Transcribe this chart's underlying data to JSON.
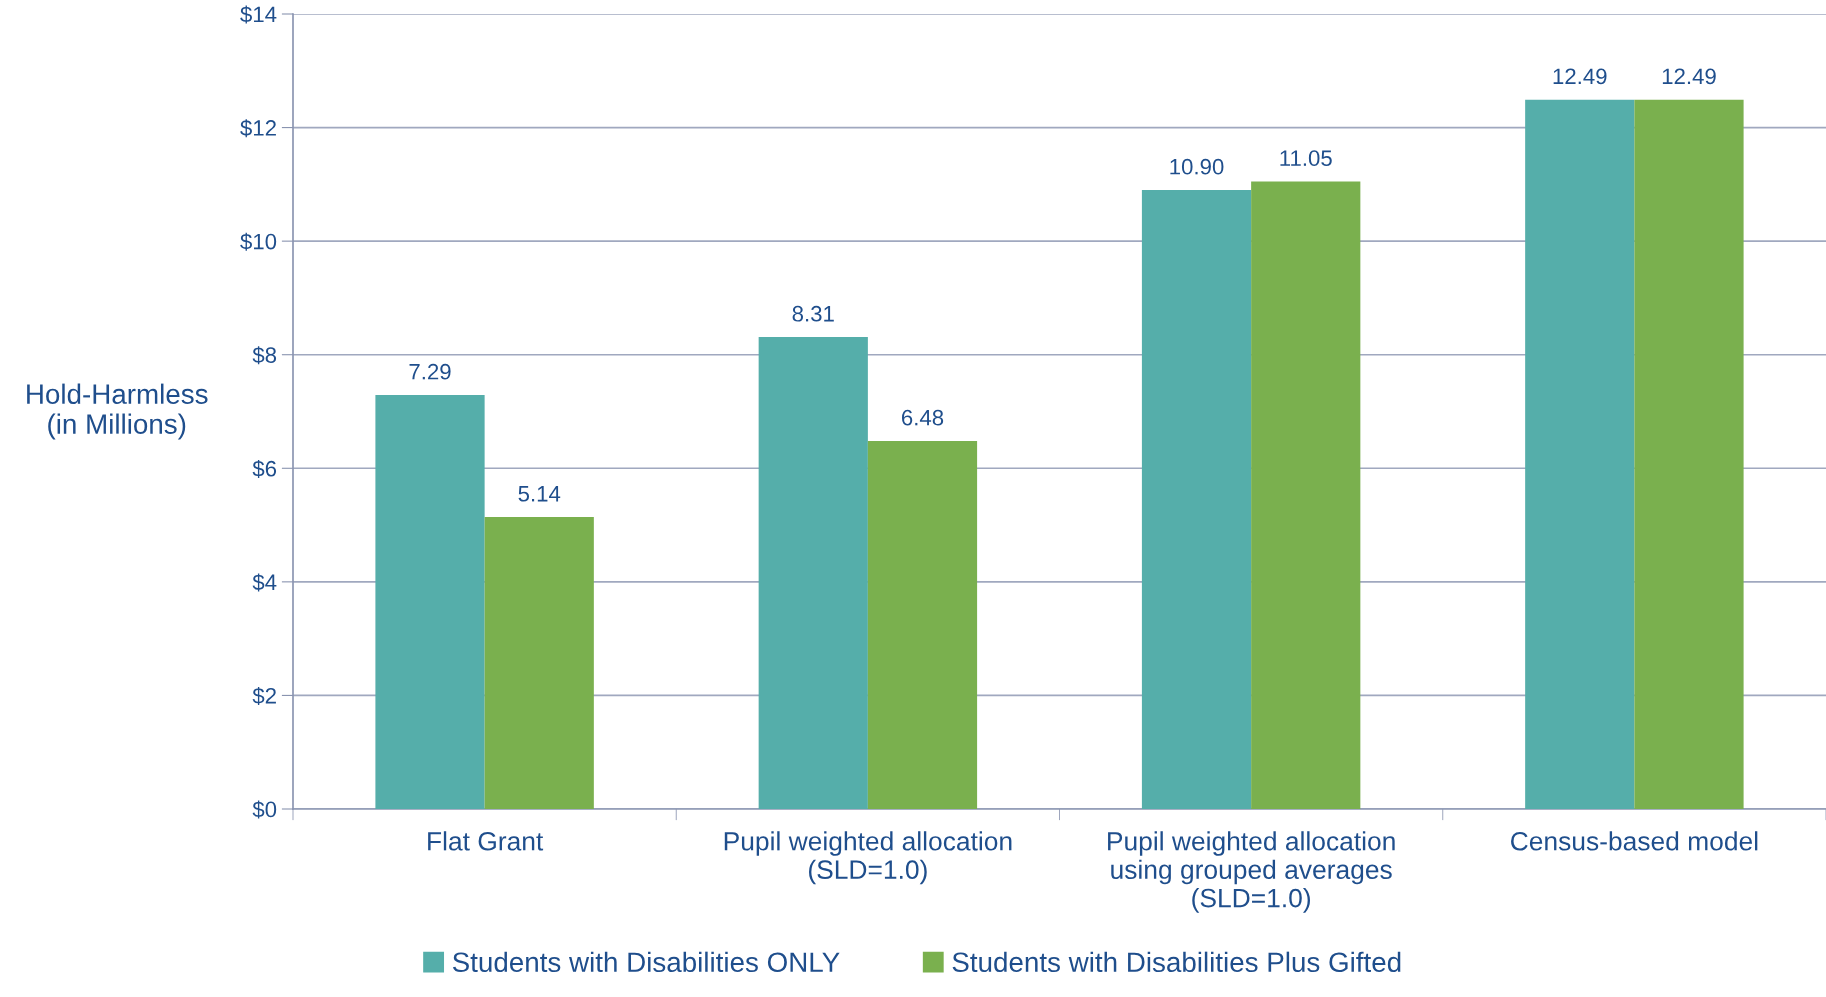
{
  "chart_data": {
    "type": "bar",
    "ylabel": "Hold-Harmless\n(in Millions)",
    "categories": [
      "Flat Grant",
      "Pupil weighted allocation\n(SLD=1.0)",
      "Pupil weighted allocation\nusing grouped averages\n(SLD=1.0)",
      "Census-based model"
    ],
    "series": [
      {
        "name": "Students with Disabilities ONLY",
        "color": "#55aeaa",
        "values": [
          7.29,
          8.31,
          10.9,
          12.49
        ],
        "value_labels": [
          "7.29",
          "8.31",
          "10.90",
          "12.49"
        ]
      },
      {
        "name": "Students with Disabilities Plus Gifted",
        "color": "#7ab04e",
        "values": [
          5.14,
          6.48,
          11.05,
          12.49
        ],
        "value_labels": [
          "5.14",
          "6.48",
          "11.05",
          "12.49"
        ]
      }
    ],
    "ylim": [
      0,
      14
    ],
    "yticks": [
      {
        "value": 0,
        "label": "$0"
      },
      {
        "value": 2,
        "label": "$2"
      },
      {
        "value": 4,
        "label": "$4"
      },
      {
        "value": 6,
        "label": "$6"
      },
      {
        "value": 8,
        "label": "$8"
      },
      {
        "value": 10,
        "label": "$10"
      },
      {
        "value": 12,
        "label": "$12"
      },
      {
        "value": 14,
        "label": "$14"
      }
    ],
    "grid": "y",
    "legend": "bottom"
  }
}
